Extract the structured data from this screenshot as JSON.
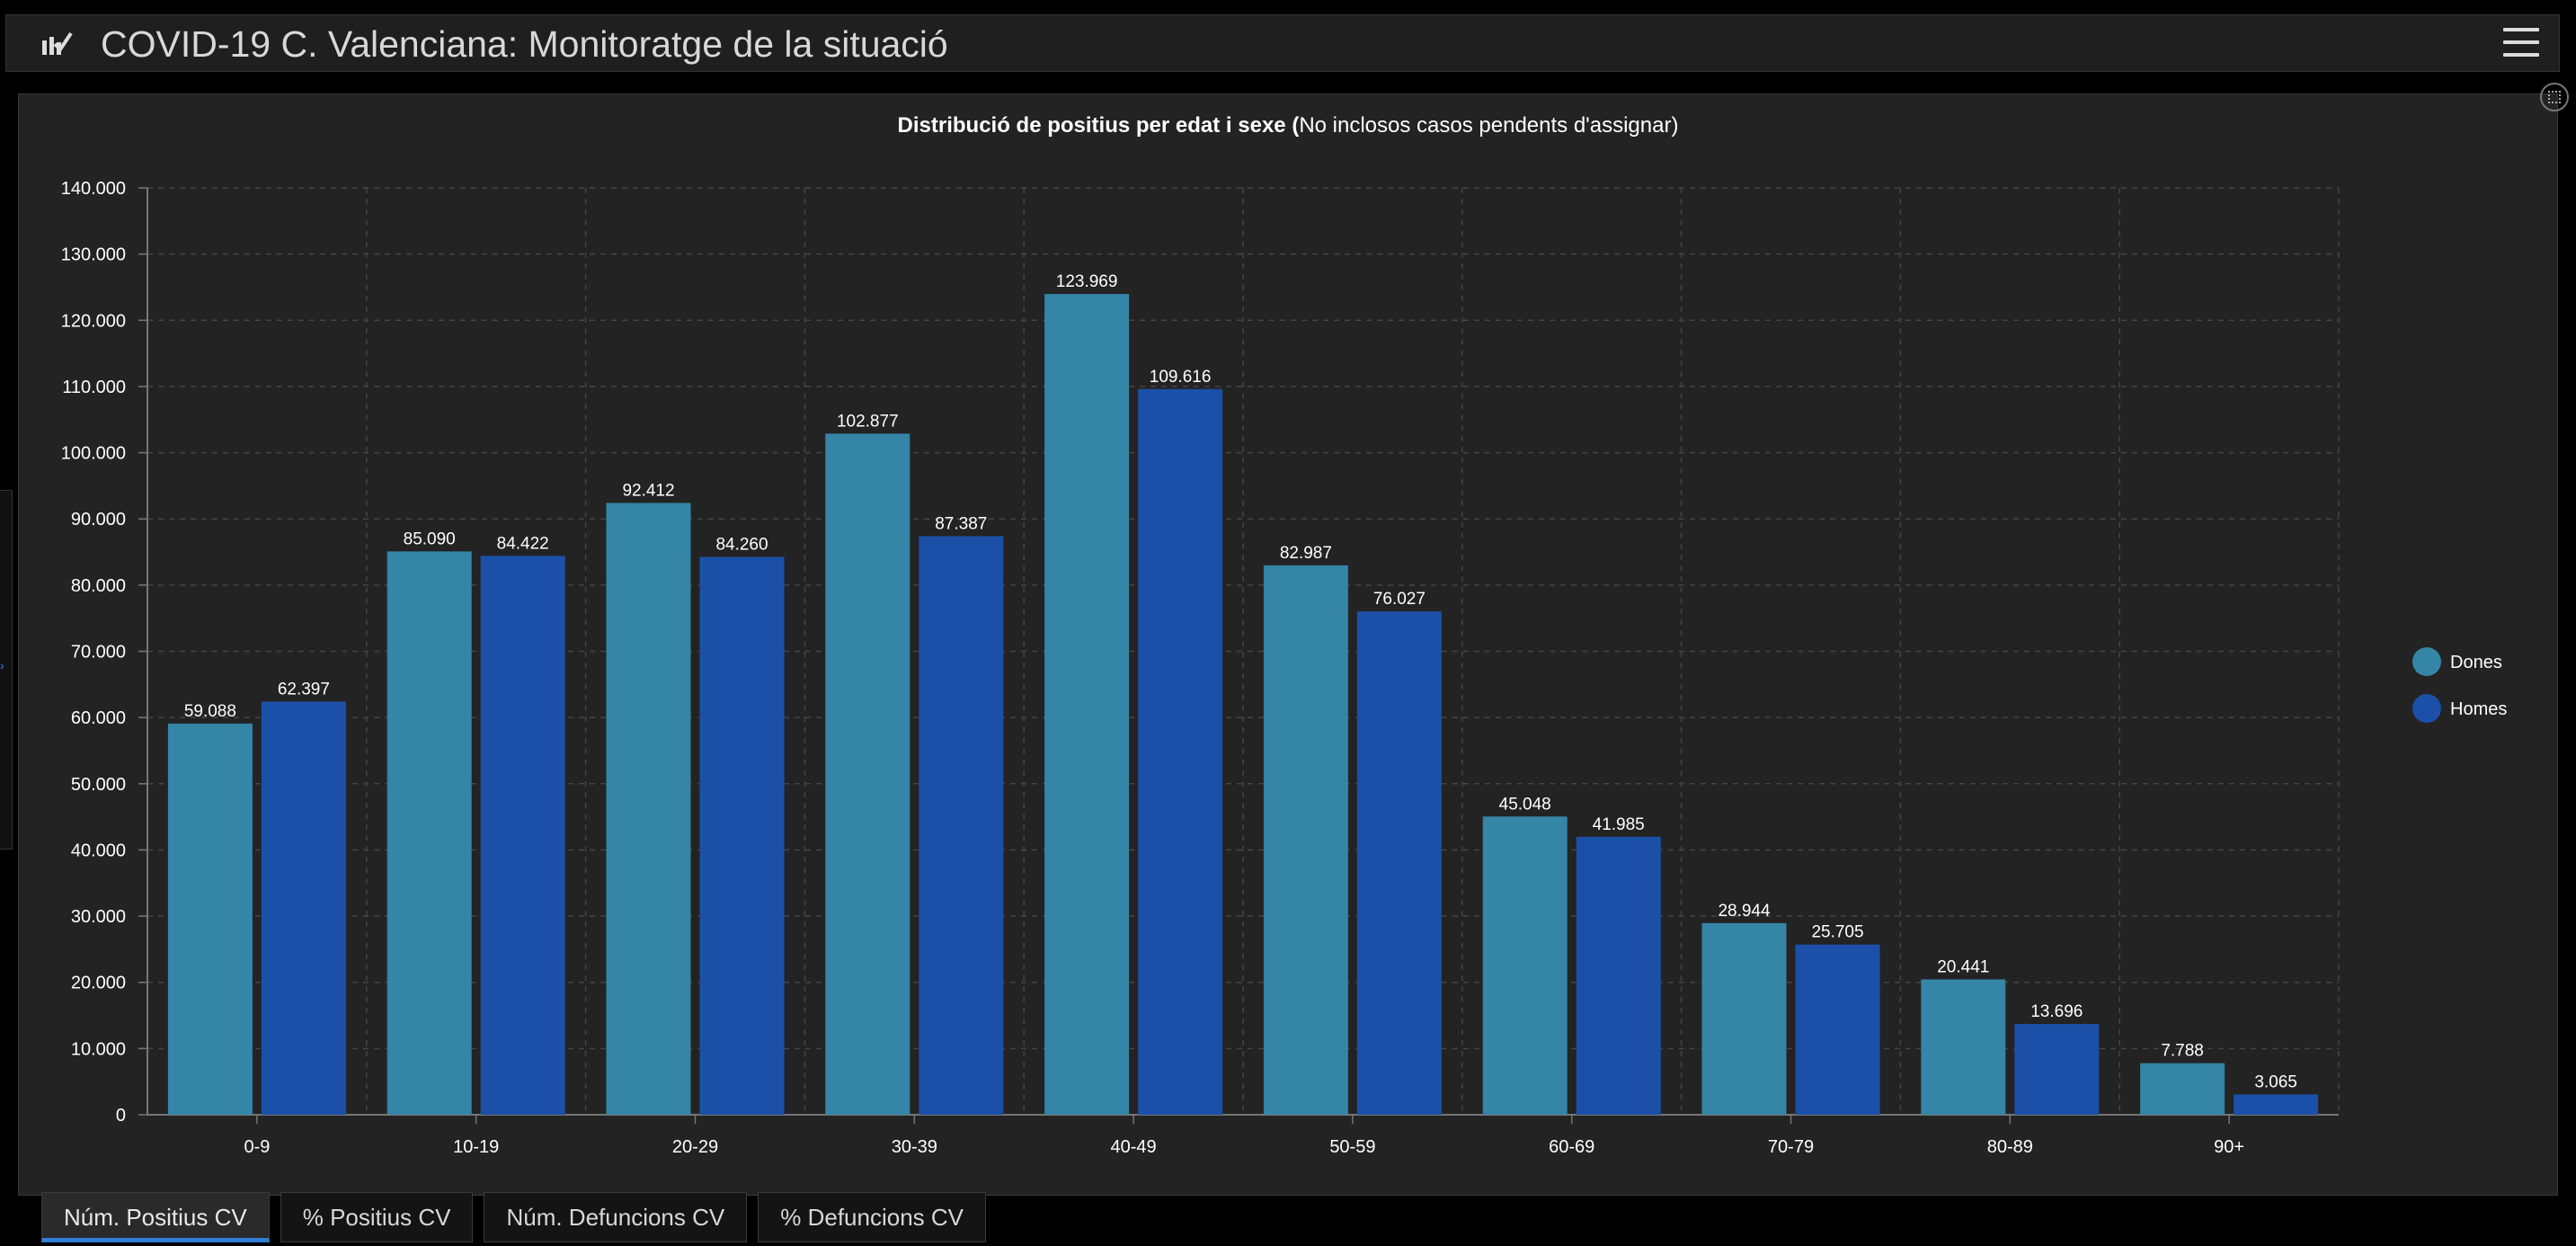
{
  "header": {
    "title": "COVID-19 C. Valenciana: Monitoratge de la situació",
    "app_icon": "chart-check-icon",
    "menu_icon": "hamburger-menu-icon"
  },
  "chart_data": {
    "type": "bar",
    "title_bold": "Distribució de positius per edat i sexe (",
    "title_rest": "No inclosos casos pendents d'assignar)",
    "categories": [
      "0-9",
      "10-19",
      "20-29",
      "30-39",
      "40-49",
      "50-59",
      "60-69",
      "70-79",
      "80-89",
      "90+"
    ],
    "series": [
      {
        "name": "Dones",
        "color": "#3585a6",
        "values": [
          59088,
          85090,
          92412,
          102877,
          123969,
          82987,
          45048,
          28944,
          20441,
          7788
        ],
        "labels": [
          "59.088",
          "85.090",
          "92.412",
          "102.877",
          "123.969",
          "82.987",
          "45.048",
          "28.944",
          "20.441",
          "7.788"
        ]
      },
      {
        "name": "Homes",
        "color": "#1c50a8",
        "values": [
          62397,
          84422,
          84260,
          87387,
          109616,
          76027,
          41985,
          25705,
          13696,
          3065
        ],
        "labels": [
          "62.397",
          "84.422",
          "84.260",
          "87.387",
          "109.616",
          "76.027",
          "41.985",
          "25.705",
          "13.696",
          "3.065"
        ]
      }
    ],
    "ylim": [
      0,
      140000
    ],
    "yticks": [
      0,
      10000,
      20000,
      30000,
      40000,
      50000,
      60000,
      70000,
      80000,
      90000,
      100000,
      110000,
      120000,
      130000,
      140000
    ],
    "ytick_labels": [
      "0",
      "10.000",
      "20.000",
      "30.000",
      "40.000",
      "50.000",
      "60.000",
      "70.000",
      "80.000",
      "90.000",
      "100.000",
      "110.000",
      "120.000",
      "130.000",
      "140.000"
    ],
    "grid": true,
    "legend_position": "right"
  },
  "tabs": [
    {
      "label": "Núm. Positius CV",
      "active": true
    },
    {
      "label": "% Positius CV",
      "active": false
    },
    {
      "label": "Núm. Defuncions CV",
      "active": false
    },
    {
      "label": "% Defuncions CV",
      "active": false
    }
  ]
}
